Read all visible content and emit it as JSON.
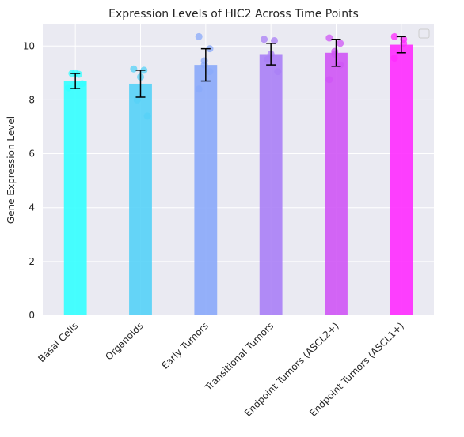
{
  "chart_data": {
    "type": "bar",
    "title": "Expression Levels of HIC2 Across Time Points",
    "xlabel": "",
    "ylabel": "Gene Expression Level",
    "ylim": [
      0,
      10.8
    ],
    "yticks": [
      0,
      2,
      4,
      6,
      8,
      10
    ],
    "grid": true,
    "legend": {
      "placement": "top-right",
      "entries": []
    },
    "categories": [
      "Basal Cells",
      "Organoids",
      "Early Tumors",
      "Transitional Tumors",
      "Endpoint Tumors (ASCL2+)",
      "Endpoint Tumors (ASCL1+)"
    ],
    "values": [
      8.7,
      8.6,
      9.3,
      9.7,
      9.75,
      10.05
    ],
    "errors": [
      0.28,
      0.5,
      0.6,
      0.4,
      0.5,
      0.3
    ],
    "colors": [
      "#33ffff",
      "#55d2f7",
      "#8aa9f9",
      "#aa7ff6",
      "#cf55f5",
      "#ff2bff"
    ],
    "points": [
      [
        8.45,
        8.95,
        9.0,
        8.98,
        8.6
      ],
      [
        9.15,
        9.1,
        8.85,
        8.0,
        7.4
      ],
      [
        10.35,
        9.9,
        9.45,
        9.3,
        9.05,
        8.4
      ],
      [
        10.25,
        10.2,
        9.7,
        9.5,
        9.05
      ],
      [
        10.3,
        10.1,
        9.8,
        9.7,
        9.3,
        8.75
      ],
      [
        10.35,
        10.25,
        10.1,
        9.55
      ]
    ],
    "background_color": "#eaeaf2",
    "grid_color": "#ffffff"
  }
}
